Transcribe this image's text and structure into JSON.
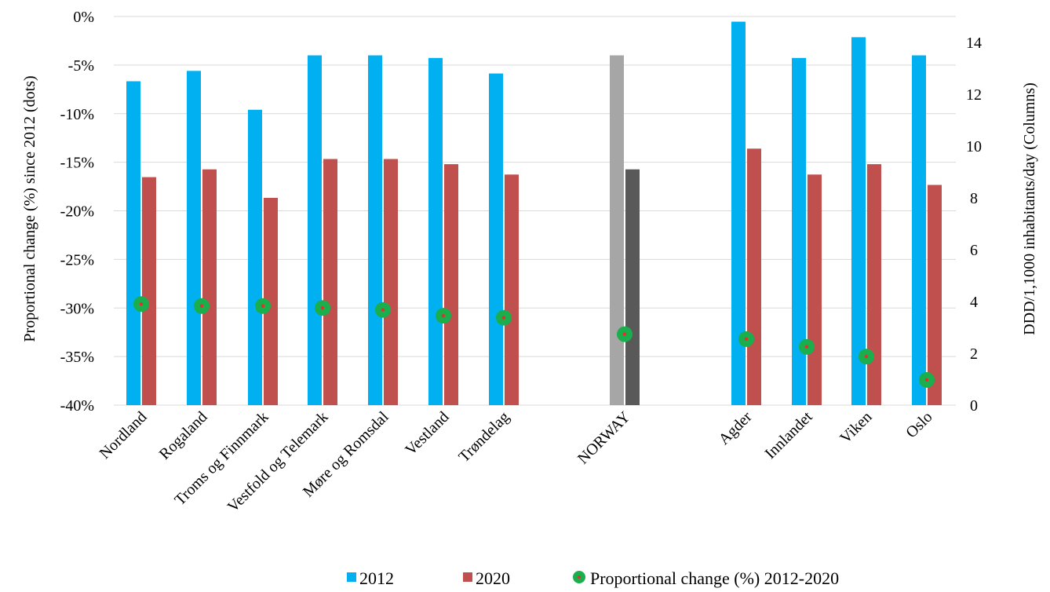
{
  "chart_data": {
    "type": "bar",
    "categories": [
      "Nordland",
      "Rogaland",
      "Troms og Finnmark",
      "Vestfold og Telemark",
      "Møre og Romsdal",
      "Vestland",
      "Trøndelag",
      "NORWAY",
      "Agder",
      "Innlandet",
      "Viken",
      "Oslo"
    ],
    "series": [
      {
        "name": "2012",
        "axis": "right",
        "kind": "column",
        "color": "#00b0f0",
        "values": [
          12.5,
          12.9,
          11.4,
          13.5,
          13.5,
          13.4,
          12.8,
          13.5,
          14.8,
          13.4,
          14.2,
          13.5
        ]
      },
      {
        "name": "2020",
        "axis": "right",
        "kind": "column",
        "color": "#c0504d",
        "values": [
          8.8,
          9.1,
          8.0,
          9.5,
          9.5,
          9.3,
          8.9,
          9.1,
          9.9,
          8.9,
          9.3,
          8.5
        ]
      },
      {
        "name": "Proportional change (%) 2012-2020",
        "axis": "left",
        "kind": "dot",
        "color": "#1aae4c",
        "values": [
          -29.6,
          -29.8,
          -29.8,
          -30.0,
          -30.2,
          -30.8,
          -31.0,
          -32.7,
          -33.2,
          -34.0,
          -35.0,
          -37.4
        ]
      }
    ],
    "highlight": {
      "category": "NORWAY",
      "colors": {
        "2012": "#a6a6a6",
        "2020": "#595959"
      }
    },
    "dot_center_color": "#e0322d",
    "left_axis": {
      "label": "Proportional change (%) since 2012 (dots)",
      "ylim": [
        -40,
        0
      ],
      "ticks": [
        "0%",
        "-5%",
        "-10%",
        "-15%",
        "-20%",
        "-25%",
        "-30%",
        "-35%",
        "-40%"
      ],
      "tick_values": [
        0,
        -5,
        -10,
        -15,
        -20,
        -25,
        -30,
        -35,
        -40
      ]
    },
    "right_axis": {
      "label": "DDD/1,1000 inhabitants/day (Columns)",
      "ylim": [
        0,
        15
      ],
      "ticks": [
        "14",
        "12",
        "10",
        "8",
        "6",
        "4",
        "2",
        "0"
      ],
      "tick_values": [
        14,
        12,
        10,
        8,
        6,
        4,
        2,
        0
      ]
    },
    "grid": true,
    "legend": {
      "position": "bottom",
      "entries": [
        "2012",
        "2020",
        "Proportional change (%) 2012-2020"
      ]
    }
  }
}
